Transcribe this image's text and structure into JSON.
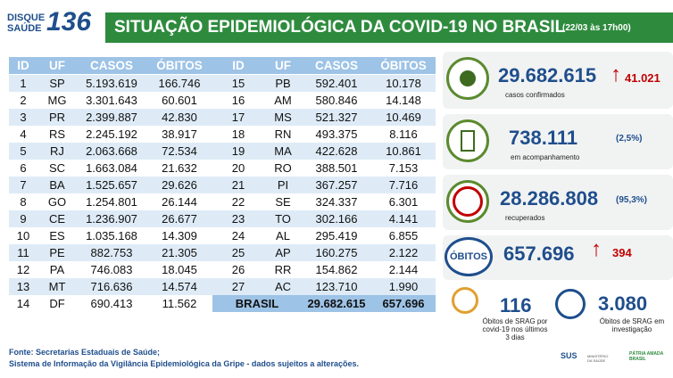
{
  "header": {
    "logo_line1": "DISQUE",
    "logo_line2": "SAÚDE",
    "logo_number": "136",
    "title": "SITUAÇÃO EPIDEMIOLÓGICA DA COVID-19 NO BRASIL",
    "date": "(22/03 às 17h00)"
  },
  "table_left": {
    "columns": [
      "ID",
      "UF",
      "CASOS",
      "ÓBITOS"
    ],
    "rows": [
      [
        "1",
        "SP",
        "5.193.619",
        "166.746"
      ],
      [
        "2",
        "MG",
        "3.301.643",
        "60.601"
      ],
      [
        "3",
        "PR",
        "2.399.887",
        "42.830"
      ],
      [
        "4",
        "RS",
        "2.245.192",
        "38.917"
      ],
      [
        "5",
        "RJ",
        "2.063.668",
        "72.534"
      ],
      [
        "6",
        "SC",
        "1.663.084",
        "21.632"
      ],
      [
        "7",
        "BA",
        "1.525.657",
        "29.626"
      ],
      [
        "8",
        "GO",
        "1.254.801",
        "26.144"
      ],
      [
        "9",
        "CE",
        "1.236.907",
        "26.677"
      ],
      [
        "10",
        "ES",
        "1.035.168",
        "14.309"
      ],
      [
        "11",
        "PE",
        "882.753",
        "21.305"
      ],
      [
        "12",
        "PA",
        "746.083",
        "18.045"
      ],
      [
        "13",
        "MT",
        "716.636",
        "14.574"
      ],
      [
        "14",
        "DF",
        "690.413",
        "11.562"
      ]
    ]
  },
  "table_right": {
    "columns": [
      "ID",
      "UF",
      "CASOS",
      "ÓBITOS"
    ],
    "rows": [
      [
        "15",
        "PB",
        "592.401",
        "10.178"
      ],
      [
        "16",
        "AM",
        "580.846",
        "14.148"
      ],
      [
        "17",
        "MS",
        "521.327",
        "10.469"
      ],
      [
        "18",
        "RN",
        "493.375",
        "8.116"
      ],
      [
        "19",
        "MA",
        "422.628",
        "10.861"
      ],
      [
        "20",
        "RO",
        "388.501",
        "7.153"
      ],
      [
        "21",
        "PI",
        "367.257",
        "7.716"
      ],
      [
        "22",
        "SE",
        "324.337",
        "6.301"
      ],
      [
        "23",
        "TO",
        "302.166",
        "4.141"
      ],
      [
        "24",
        "AL",
        "295.419",
        "6.855"
      ],
      [
        "25",
        "AP",
        "160.275",
        "2.122"
      ],
      [
        "26",
        "RR",
        "154.862",
        "2.144"
      ],
      [
        "27",
        "AC",
        "123.710",
        "1.990"
      ]
    ],
    "total": [
      "BRASIL",
      "29.682.615",
      "657.696"
    ]
  },
  "stats": {
    "confirmed": {
      "value": "29.682.615",
      "change": "41.021",
      "label": "casos confirmados"
    },
    "monitoring": {
      "value": "738.111",
      "percent": "(2,5%)",
      "label": "em acompanhamento"
    },
    "recovered": {
      "value": "28.286.808",
      "percent": "(95,3%)",
      "label": "recuperados"
    },
    "deaths": {
      "label": "ÓBITOS",
      "value": "657.696",
      "change": "394"
    },
    "srag": {
      "value": "116",
      "label": [
        "Óbitos de SRAG por",
        "covid-19 nos últimos",
        "3 dias"
      ]
    },
    "investigation": {
      "value": "3.080",
      "label": [
        "Óbitos de SRAG em",
        "investigação"
      ]
    }
  },
  "footer": [
    "Fonte: Secretarias Estaduais de Saúde;",
    "Sistema de Informação da Vigilância Epidemiológica da Gripe - dados sujeitos a alterações."
  ],
  "logos": {
    "sus": "SUS",
    "ministry": "MINISTÉRIO DA SAÚDE",
    "brand": "PÁTRIA AMADA BRASIL"
  }
}
